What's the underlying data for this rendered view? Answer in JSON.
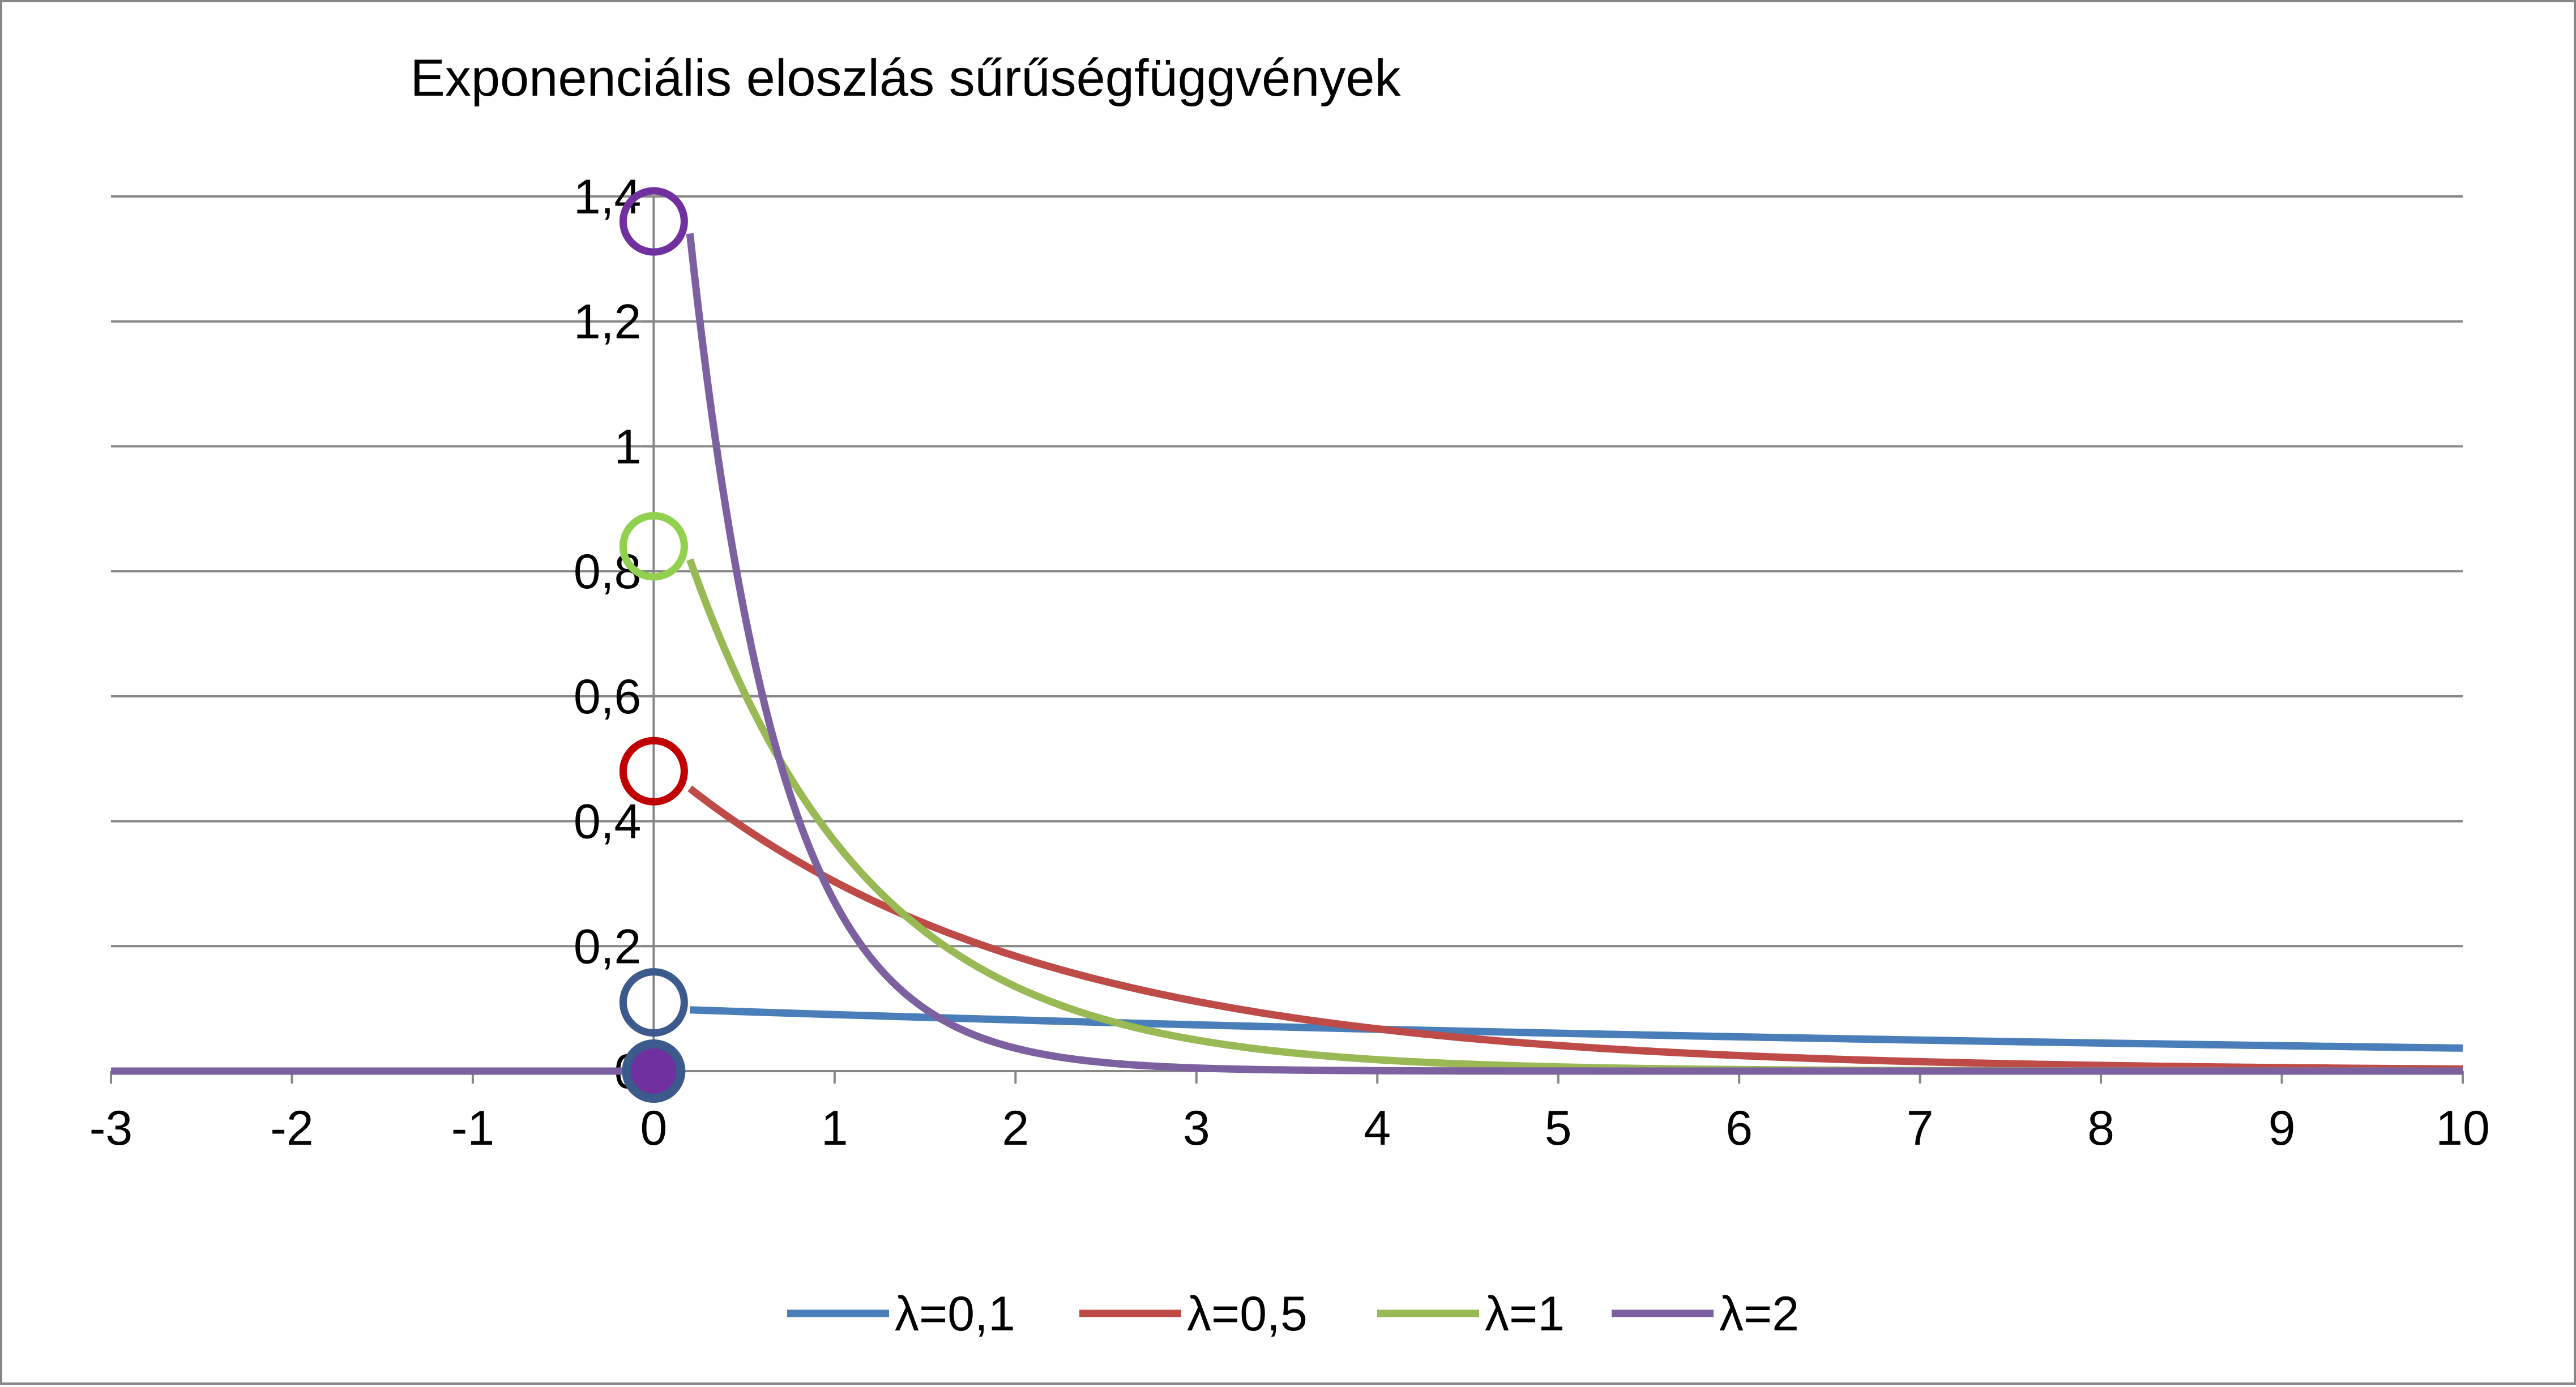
{
  "chart_data": {
    "type": "line",
    "title": "Exponenciális eloszlás sűrűségfüggvények",
    "xlabel": "",
    "ylabel": "",
    "xlim": [
      -3,
      10
    ],
    "ylim": [
      0,
      1.4
    ],
    "x_ticks": [
      "-3",
      "-2",
      "-1",
      "0",
      "1",
      "2",
      "3",
      "4",
      "5",
      "6",
      "7",
      "8",
      "9",
      "10"
    ],
    "y_ticks": [
      "0",
      "0,2",
      "0,4",
      "0,6",
      "0,8",
      "1",
      "1,2",
      "1,4"
    ],
    "grid": true,
    "legend_position": "bottom",
    "colors": {
      "grid": "#868686",
      "frame": "#868686",
      "zero_point_fill": "#7030A0",
      "zero_point_stroke": "#3C5A8C"
    },
    "series": [
      {
        "name": "λ=0,1",
        "color": "#4A7EBB",
        "marker_color": "#3C5A8C",
        "rate": 0.1,
        "x": [
          -3,
          0,
          0.2,
          1,
          2,
          3,
          4,
          5,
          6,
          7,
          8,
          9,
          10
        ],
        "values": [
          0,
          0,
          0.098,
          0.09,
          0.082,
          0.074,
          0.067,
          0.061,
          0.055,
          0.05,
          0.045,
          0.041,
          0.037
        ],
        "start_open_marker": [
          0,
          0.11
        ]
      },
      {
        "name": "λ=0,5",
        "color": "#BE4B48",
        "marker_color": "#C00000",
        "rate": 0.5,
        "x": [
          -3,
          0,
          0.2,
          1,
          2,
          3,
          4,
          5,
          6,
          7,
          8,
          9,
          10
        ],
        "values": [
          0,
          0,
          0.452,
          0.303,
          0.184,
          0.112,
          0.068,
          0.041,
          0.025,
          0.015,
          0.009,
          0.006,
          0.003
        ],
        "start_open_marker": [
          0,
          0.48
        ]
      },
      {
        "name": "λ=1",
        "color": "#98B954",
        "marker_color": "#92D050",
        "rate": 1,
        "x": [
          -3,
          0,
          0.2,
          1,
          2,
          3,
          4,
          5,
          6,
          7,
          8,
          9,
          10
        ],
        "values": [
          0,
          0,
          0.819,
          0.368,
          0.135,
          0.05,
          0.018,
          0.007,
          0.002,
          0.001,
          0,
          0,
          0
        ],
        "start_open_marker": [
          0,
          0.84
        ]
      },
      {
        "name": "λ=2",
        "color": "#7D60A0",
        "marker_color": "#7030A0",
        "rate": 2,
        "x": [
          -3,
          0,
          0.2,
          1,
          2,
          3,
          4,
          5,
          6,
          7,
          8,
          9,
          10
        ],
        "values": [
          0,
          0,
          1.341,
          0.271,
          0.037,
          0.005,
          0.001,
          0,
          0,
          0,
          0,
          0,
          0
        ],
        "start_open_marker": [
          0,
          1.36
        ]
      }
    ],
    "zero_filled_marker": [
      0,
      0
    ]
  }
}
